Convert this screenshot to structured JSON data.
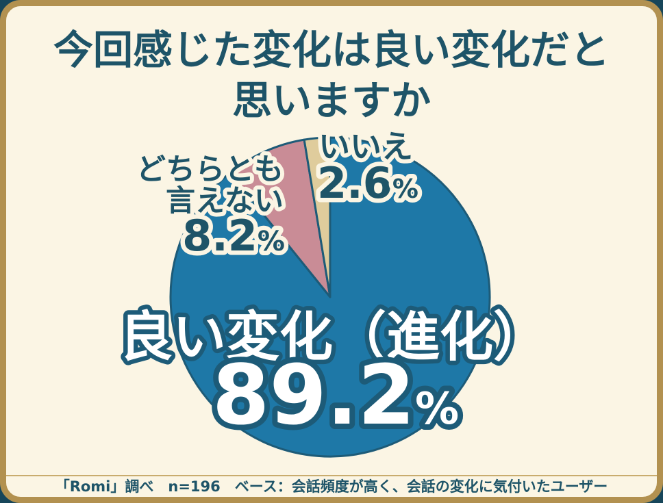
{
  "title": {
    "line1": "今回感じた変化は良い変化だと",
    "line2": "思いますか"
  },
  "footer": {
    "source_note": "「Romi」調べ　n=196　ベース：会話頻度が高く、会話の変化に気付いたユーザー"
  },
  "colors": {
    "page_bg": "#17465A",
    "card_bg": "#FBF5E4",
    "card_border": "#B29150",
    "divider": "#C9AC6E",
    "title_text": "#1E5468",
    "callout_text": "#1E5468",
    "callout_halo": "#FBF5E4",
    "big_label_text": "#FFFFFF",
    "slice_stroke": "#1D5B78",
    "footer_text": "#1E5468"
  },
  "chart_data": {
    "type": "pie",
    "title": "今回感じた変化は良い変化だと思いますか",
    "unit": "%",
    "start_angle_deg": 0,
    "direction": "clockwise",
    "legend": "none",
    "slices": [
      {
        "label": "良い変化（進化）",
        "value": 89.2,
        "color": "#1E78A7"
      },
      {
        "label": "どちらとも言えない",
        "value": 8.2,
        "color": "#C98C96"
      },
      {
        "label": "いいえ",
        "value": 2.6,
        "color": "#DFCC9C"
      }
    ],
    "source_note": "「Romi」調べ　n=196　ベース：会話頻度が高く、会話の変化に気付いたユーザー"
  },
  "callouts": {
    "good": {
      "name": "良い変化（進化）"
    },
    "neutral": {
      "name_line1": "どちらとも",
      "name_line2": "言えない"
    },
    "no": {
      "name": "いいえ"
    }
  }
}
